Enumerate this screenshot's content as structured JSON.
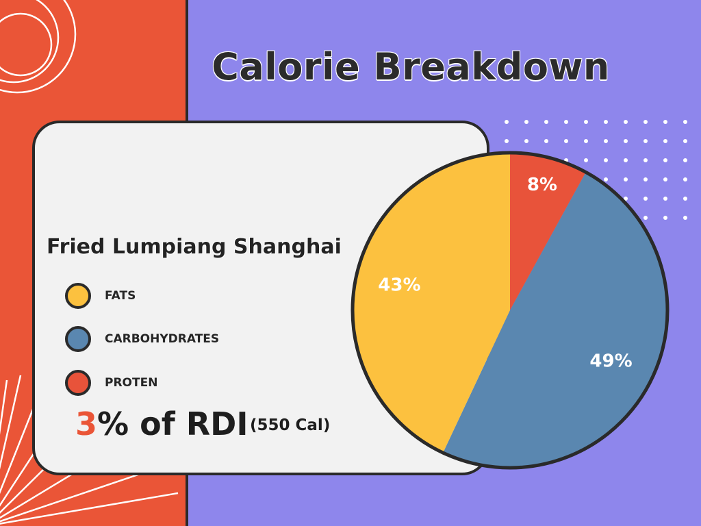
{
  "title": "Calorie Breakdown",
  "dish_name": "Fried Lumpiang Shanghai",
  "rdi": {
    "value": "3",
    "suffix": "% of RDI",
    "calories": "(550 Cal)"
  },
  "colors": {
    "background": "#8e86ec",
    "accent_red": "#ea5537",
    "fats": "#fcc13f",
    "carbohydrates": "#5a87b0",
    "protein": "#e8533a",
    "card": "#f2f2f2",
    "outline": "#2a2a2a"
  },
  "legend": [
    {
      "label": "FATS",
      "color": "#fcc13f"
    },
    {
      "label": "CARBOHYDRATES",
      "color": "#5a87b0"
    },
    {
      "label": "PROTEN",
      "color": "#e8533a"
    }
  ],
  "chart_data": {
    "type": "pie",
    "title": "Calorie Breakdown",
    "slices": [
      {
        "label": "PROTEN",
        "value": 8,
        "display": "8%",
        "color": "#e8533a"
      },
      {
        "label": "CARBOHYDRATES",
        "value": 49,
        "display": "49%",
        "color": "#5a87b0"
      },
      {
        "label": "FATS",
        "value": 43,
        "display": "43%",
        "color": "#fcc13f"
      }
    ]
  }
}
